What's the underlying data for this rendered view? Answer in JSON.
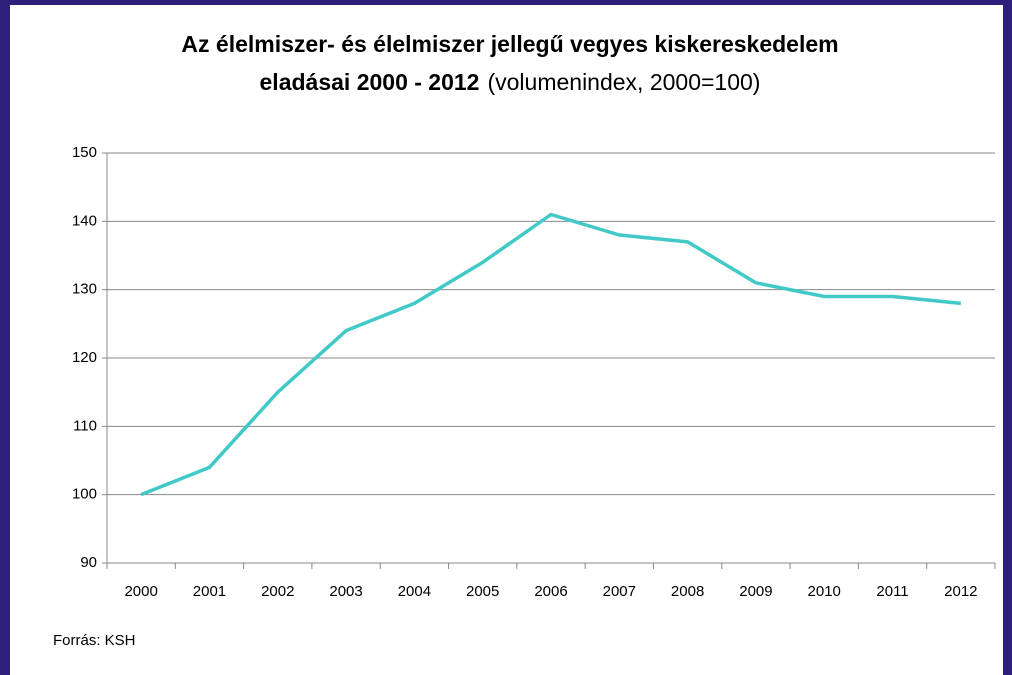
{
  "chart_data": {
    "type": "line",
    "title": [
      "Az élelmiszer- és élelmiszer jellegű vegyes kiskereskedelem",
      "eladásai  2000 - 2012"
    ],
    "subtitle": "(volumenindex, 2000=100)",
    "categories": [
      "2000",
      "2001",
      "2002",
      "2003",
      "2004",
      "2005",
      "2006",
      "2007",
      "2008",
      "2009",
      "2010",
      "2011",
      "2012"
    ],
    "series": [
      {
        "color": "#40c9c6",
        "values": [
          100,
          104,
          115,
          124,
          128,
          134,
          141,
          138,
          137,
          131,
          129,
          129,
          128
        ]
      }
    ],
    "ylim": [
      90,
      150
    ],
    "yticks": [
      90,
      100,
      110,
      120,
      130,
      140,
      150
    ],
    "grid": true,
    "source": "Forrás: KSH"
  }
}
